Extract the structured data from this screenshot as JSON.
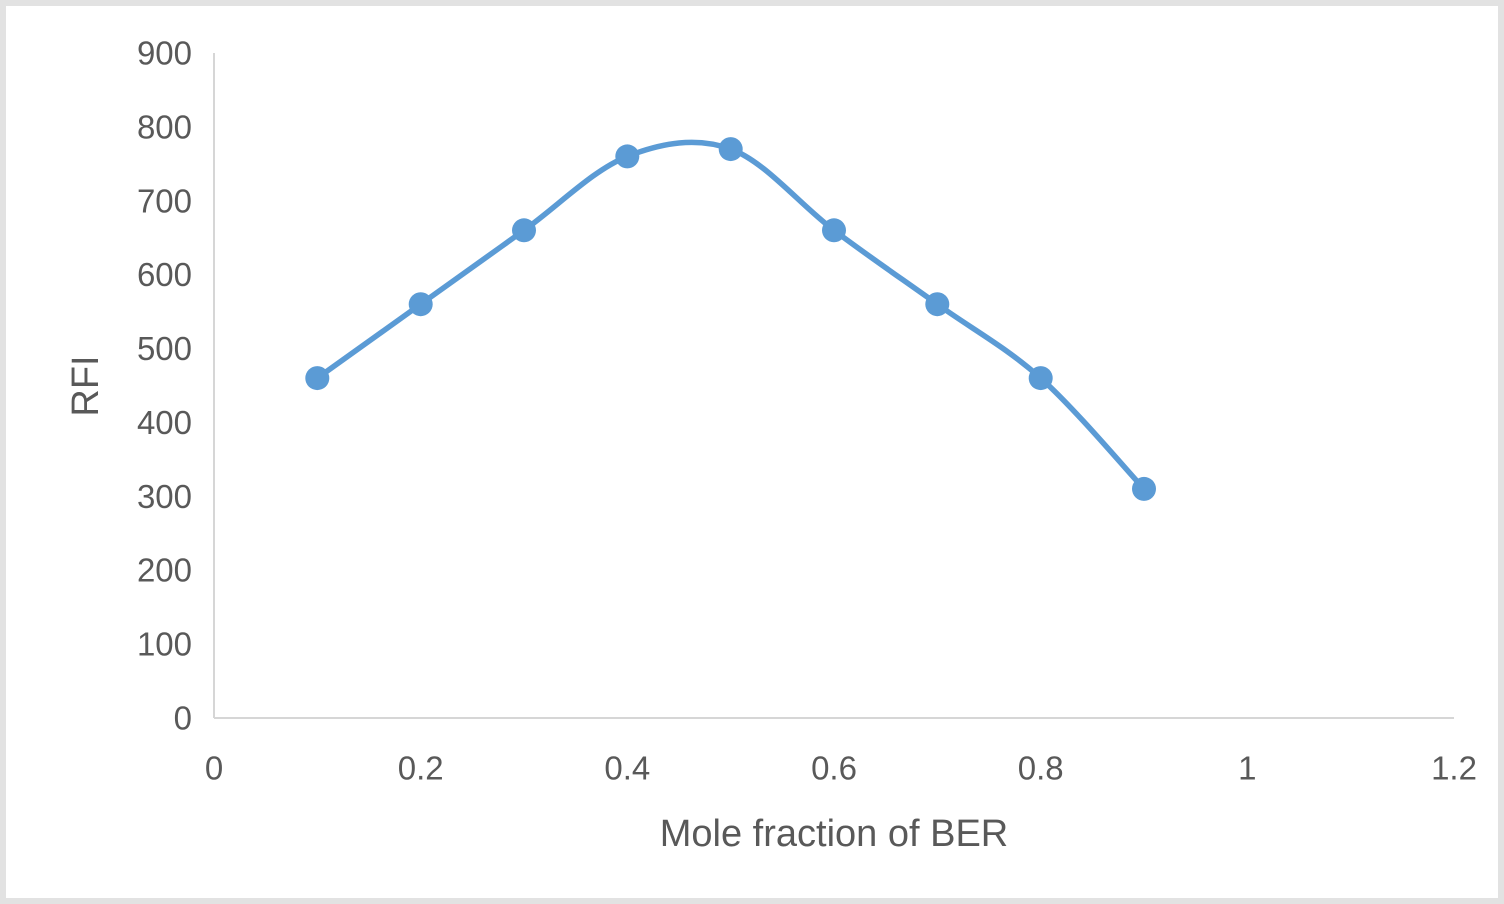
{
  "frame": {
    "background": "#ffffff",
    "border_color": "#e2e2e2"
  },
  "chart_data": {
    "type": "line",
    "title": "",
    "xlabel": "Mole fraction of BER",
    "ylabel": "RFI",
    "x": [
      0.1,
      0.2,
      0.3,
      0.4,
      0.5,
      0.6,
      0.7,
      0.8,
      0.9
    ],
    "y": [
      460,
      560,
      660,
      760,
      770,
      660,
      560,
      460,
      310
    ],
    "series_name": "RFI",
    "xlim": [
      0,
      1.2
    ],
    "ylim": [
      0,
      900
    ],
    "x_tick_values": [
      0,
      0.2,
      0.4,
      0.6,
      0.8,
      1,
      1.2
    ],
    "x_tick_labels": [
      "0",
      "0.2",
      "0.4",
      "0.6",
      "0.8",
      "1",
      "1.2"
    ],
    "y_tick_values": [
      0,
      100,
      200,
      300,
      400,
      500,
      600,
      700,
      800,
      900
    ],
    "y_tick_labels": [
      "0",
      "100",
      "200",
      "300",
      "400",
      "500",
      "600",
      "700",
      "800",
      "900"
    ],
    "grid": false,
    "legend": false,
    "smoothed": true,
    "line_color": "#5B9BD5",
    "marker_color": "#5B9BD5",
    "marker_shape": "circle",
    "axis_color": "#d6d6d6",
    "text_color": "#595959"
  }
}
